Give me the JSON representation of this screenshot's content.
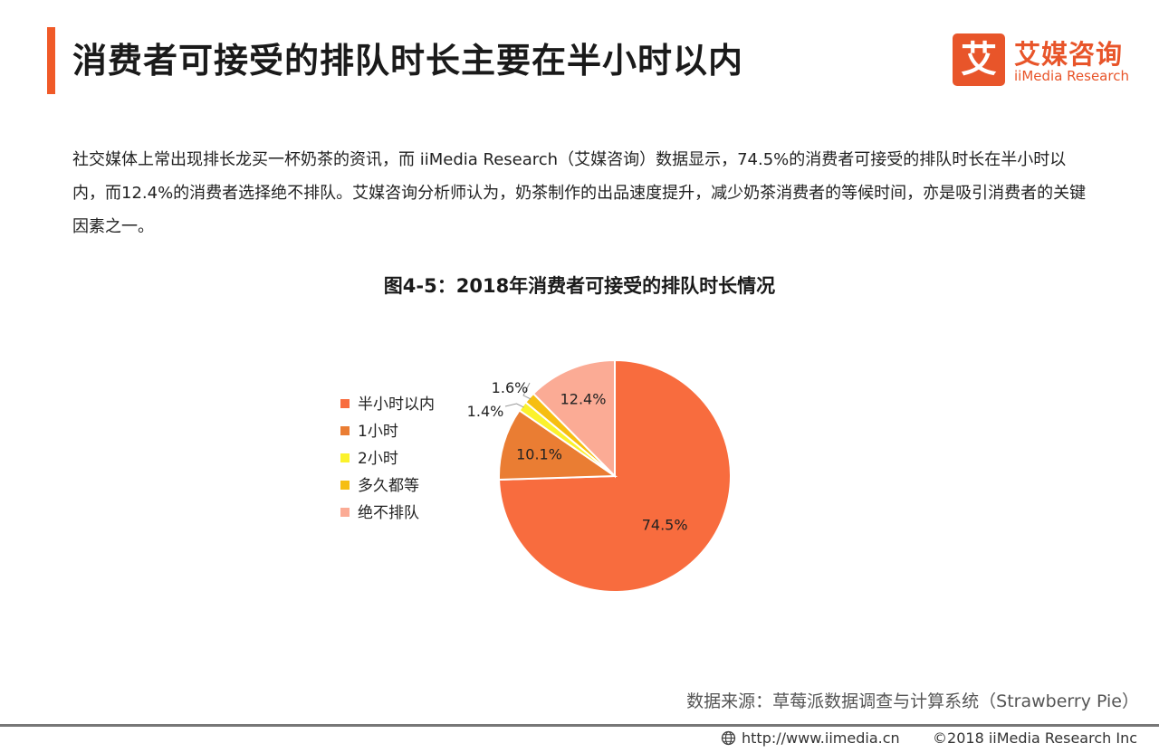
{
  "header": {
    "title": "消费者可接受的排队时长主要在半小时以内",
    "logo_mark": "艾",
    "logo_cn": "艾媒咨询",
    "logo_en": "iiMedia Research"
  },
  "paragraph": "社交媒体上常出现排长龙买一杯奶茶的资讯，而 iiMedia Research（艾媒咨询）数据显示，74.5%的消费者可接受的排队时长在半小时以内，而12.4%的消费者选择绝不排队。艾媒咨询分析师认为，奶茶制作的出品速度提升，减少奶茶消费者的等候时间，亦是吸引消费者的关键因素之一。",
  "chart_data": {
    "type": "pie",
    "title": "图4-5：2018年消费者可接受的排队时长情况",
    "legend_position": "left",
    "slices": [
      {
        "name": "半小时以内",
        "value": 74.5,
        "label": "74.5%",
        "color": "#f86c3e"
      },
      {
        "name": "1小时",
        "value": 10.1,
        "label": "10.1%",
        "color": "#ea7d33"
      },
      {
        "name": "2小时",
        "value": 1.4,
        "label": "1.4%",
        "color": "#fbf22c"
      },
      {
        "name": "多久都等",
        "value": 1.6,
        "label": "1.6%",
        "color": "#f6be12"
      },
      {
        "name": "绝不排队",
        "value": 12.4,
        "label": "12.4%",
        "color": "#fbab95"
      }
    ]
  },
  "footer": {
    "source": "数据来源：草莓派数据调查与计算系统（Strawberry Pie）",
    "url": "http://www.iimedia.cn",
    "copyright": "©2018  iiMedia Research  Inc"
  }
}
